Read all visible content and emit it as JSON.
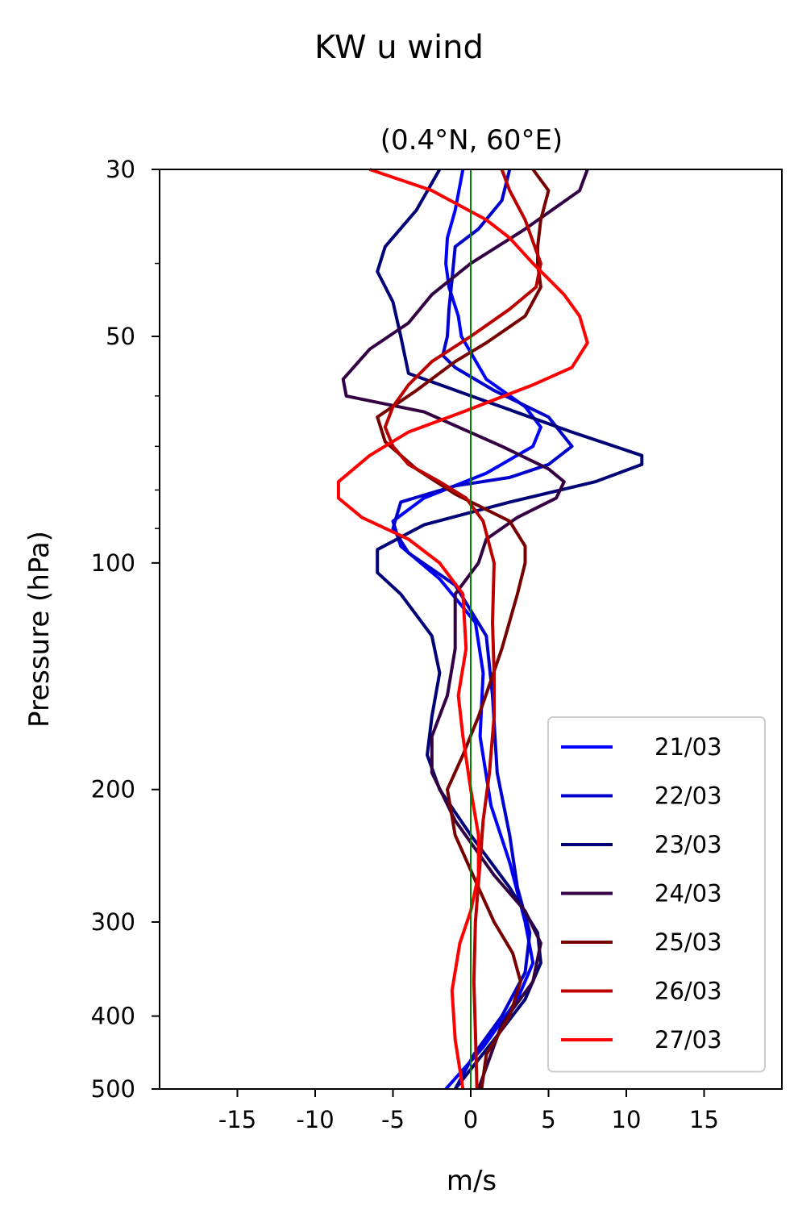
{
  "chart_data": {
    "type": "line",
    "suptitle": "KW u wind",
    "title": "(0.4°N, 60°E)",
    "xlabel": "m/s",
    "ylabel": "Pressure (hPa)",
    "xlim": [
      -20,
      20
    ],
    "ylim": [
      500,
      30
    ],
    "y_scale": "log",
    "xticks": [
      -15,
      -10,
      -5,
      0,
      5,
      10,
      15
    ],
    "xtick_labels": [
      "-15",
      "-10",
      "-5",
      "0",
      "5",
      "10",
      "15"
    ],
    "yticks": [
      30,
      50,
      100,
      200,
      300,
      400,
      500
    ],
    "ytick_labels": [
      "30",
      "50",
      "100",
      "200",
      "300",
      "400",
      "500"
    ],
    "y_minor_ticks": [
      40,
      60,
      70,
      80,
      90
    ],
    "grid": false,
    "legend_position": "lower-right",
    "reference_line": {
      "x": 0,
      "color": "#008000"
    },
    "series": [
      {
        "name": "21/03",
        "color": "#0000ff",
        "points": [
          [
            -0.5,
            30
          ],
          [
            -1,
            34
          ],
          [
            -1.5,
            37
          ],
          [
            -1.6,
            40
          ],
          [
            -1.4,
            43
          ],
          [
            -0.8,
            47
          ],
          [
            -0.6,
            50
          ],
          [
            1,
            57
          ],
          [
            3.5,
            62
          ],
          [
            4.5,
            66
          ],
          [
            4,
            70
          ],
          [
            1,
            76
          ],
          [
            -3,
            82
          ],
          [
            -5,
            88
          ],
          [
            -4.5,
            95
          ],
          [
            -2,
            105
          ],
          [
            0.3,
            120
          ],
          [
            0.8,
            140
          ],
          [
            0.6,
            170
          ],
          [
            1.3,
            210
          ],
          [
            2.5,
            250
          ],
          [
            3.5,
            300
          ],
          [
            4,
            340
          ],
          [
            3,
            380
          ],
          [
            0.8,
            440
          ],
          [
            -1.6,
            500
          ]
        ]
      },
      {
        "name": "22/03",
        "color": "#0000cc",
        "points": [
          [
            2.5,
            30
          ],
          [
            2,
            33
          ],
          [
            0.5,
            36
          ],
          [
            -1,
            38
          ],
          [
            -1.2,
            42
          ],
          [
            -1.4,
            46
          ],
          [
            -1.5,
            50
          ],
          [
            -1.8,
            53
          ],
          [
            -1,
            55
          ],
          [
            1.5,
            59
          ],
          [
            5,
            64
          ],
          [
            6.5,
            70
          ],
          [
            5,
            74
          ],
          [
            2.5,
            77
          ],
          [
            -1,
            79
          ],
          [
            -4.5,
            83
          ],
          [
            -5,
            90
          ],
          [
            -4,
            97
          ],
          [
            -1,
            107
          ],
          [
            1,
            125
          ],
          [
            1.4,
            150
          ],
          [
            1.7,
            190
          ],
          [
            2.5,
            230
          ],
          [
            3,
            270
          ],
          [
            3.8,
            310
          ],
          [
            3.5,
            350
          ],
          [
            2,
            400
          ],
          [
            0.2,
            450
          ],
          [
            -1,
            500
          ]
        ]
      },
      {
        "name": "23/03",
        "color": "#000077",
        "points": [
          [
            -2,
            30
          ],
          [
            -3.5,
            34
          ],
          [
            -5.5,
            38
          ],
          [
            -6,
            41
          ],
          [
            -5,
            45
          ],
          [
            -4.5,
            50
          ],
          [
            -4,
            56
          ],
          [
            1,
            61
          ],
          [
            6.5,
            67
          ],
          [
            11,
            72
          ],
          [
            11,
            74
          ],
          [
            8,
            78
          ],
          [
            2.5,
            83
          ],
          [
            -3,
            89
          ],
          [
            -6,
            96
          ],
          [
            -6,
            103
          ],
          [
            -4.5,
            110
          ],
          [
            -2.5,
            125
          ],
          [
            -2,
            140
          ],
          [
            -2.5,
            160
          ],
          [
            -2.8,
            180
          ],
          [
            -2,
            200
          ],
          [
            0,
            230
          ],
          [
            2.5,
            270
          ],
          [
            4.3,
            310
          ],
          [
            4.5,
            340
          ],
          [
            3.5,
            380
          ],
          [
            1.5,
            430
          ],
          [
            -1,
            500
          ]
        ]
      },
      {
        "name": "24/03",
        "color": "#330044",
        "points": [
          [
            7.5,
            30
          ],
          [
            7,
            32
          ],
          [
            3.5,
            36
          ],
          [
            0,
            40
          ],
          [
            -2.5,
            44
          ],
          [
            -4,
            48
          ],
          [
            -6.5,
            52
          ],
          [
            -8.2,
            57
          ],
          [
            -8,
            60
          ],
          [
            -3,
            63
          ],
          [
            2,
            70
          ],
          [
            5,
            75
          ],
          [
            6,
            78
          ],
          [
            5.5,
            82
          ],
          [
            3,
            87
          ],
          [
            1,
            93
          ],
          [
            0.5,
            100
          ],
          [
            -1,
            110
          ],
          [
            -1,
            130
          ],
          [
            -1.5,
            150
          ],
          [
            -2.5,
            170
          ],
          [
            -2.5,
            190
          ],
          [
            -1,
            220
          ],
          [
            1.5,
            260
          ],
          [
            3.5,
            290
          ],
          [
            4.5,
            320
          ],
          [
            4,
            360
          ],
          [
            2,
            410
          ],
          [
            0.5,
            500
          ]
        ]
      },
      {
        "name": "25/03",
        "color": "#770000",
        "points": [
          [
            4,
            30
          ],
          [
            5,
            32
          ],
          [
            4.5,
            35
          ],
          [
            4.3,
            38
          ],
          [
            4.3,
            40
          ],
          [
            4.5,
            43
          ],
          [
            3.5,
            47
          ],
          [
            1,
            51
          ],
          [
            -1,
            54
          ],
          [
            -3.5,
            59
          ],
          [
            -6,
            64
          ],
          [
            -5.5,
            69
          ],
          [
            -3.5,
            75
          ],
          [
            -1,
            81
          ],
          [
            2.5,
            88
          ],
          [
            3.5,
            95
          ],
          [
            3.5,
            100
          ],
          [
            3,
            110
          ],
          [
            2,
            130
          ],
          [
            0.5,
            160
          ],
          [
            -0.5,
            180
          ],
          [
            -1.5,
            200
          ],
          [
            -1,
            230
          ],
          [
            0.5,
            270
          ],
          [
            1.5,
            300
          ],
          [
            2.7,
            330
          ],
          [
            3.2,
            360
          ],
          [
            2.5,
            400
          ],
          [
            1,
            450
          ],
          [
            0.7,
            500
          ]
        ]
      },
      {
        "name": "26/03",
        "color": "#bb0000",
        "points": [
          [
            2,
            30
          ],
          [
            2.5,
            32
          ],
          [
            3.5,
            35
          ],
          [
            4.5,
            40
          ],
          [
            4.2,
            43
          ],
          [
            2.5,
            46
          ],
          [
            0,
            50
          ],
          [
            -2.5,
            54
          ],
          [
            -4,
            58
          ],
          [
            -5,
            62
          ],
          [
            -5.5,
            66
          ],
          [
            -5,
            70
          ],
          [
            -4,
            74
          ],
          [
            -2,
            78
          ],
          [
            -0.3,
            82
          ],
          [
            0.8,
            88
          ],
          [
            1.5,
            100
          ],
          [
            1.4,
            120
          ],
          [
            1.5,
            140
          ],
          [
            1.5,
            160
          ],
          [
            1.2,
            190
          ],
          [
            0.8,
            220
          ],
          [
            0.6,
            250
          ],
          [
            0.3,
            300
          ],
          [
            0.2,
            360
          ],
          [
            0.3,
            420
          ],
          [
            0.4,
            500
          ]
        ]
      },
      {
        "name": "27/03",
        "color": "#ff0000",
        "points": [
          [
            -6.5,
            30
          ],
          [
            -2.5,
            32
          ],
          [
            1,
            35
          ],
          [
            2.5,
            37
          ],
          [
            4,
            40
          ],
          [
            6,
            44
          ],
          [
            7,
            47
          ],
          [
            7.5,
            51
          ],
          [
            6.5,
            55
          ],
          [
            4,
            58
          ],
          [
            -0.5,
            63
          ],
          [
            -4,
            67
          ],
          [
            -6.5,
            72
          ],
          [
            -8.5,
            78
          ],
          [
            -8.5,
            82
          ],
          [
            -7,
            87
          ],
          [
            -4,
            93
          ],
          [
            -2,
            100
          ],
          [
            -0.5,
            110
          ],
          [
            -0.3,
            130
          ],
          [
            -0.8,
            150
          ],
          [
            -0.5,
            170
          ],
          [
            0,
            200
          ],
          [
            0.5,
            230
          ],
          [
            0.5,
            260
          ],
          [
            0,
            290
          ],
          [
            -0.7,
            320
          ],
          [
            -1.2,
            370
          ],
          [
            -1,
            430
          ],
          [
            -0.5,
            500
          ]
        ]
      }
    ]
  }
}
